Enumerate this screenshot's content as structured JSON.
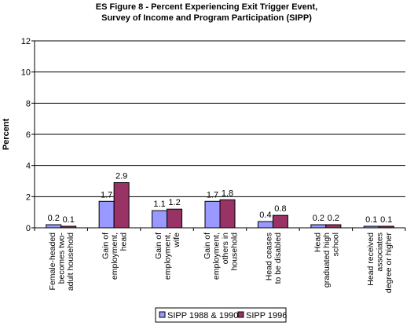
{
  "chart_data": {
    "type": "bar",
    "title_lines": [
      "ES Figure 8 - Percent Experiencing Exit Trigger Event,",
      "Survey of Income and Program Participation (SIPP)"
    ],
    "ylabel": "Percent",
    "xlabel": "",
    "ylim": [
      0,
      12
    ],
    "yticks": [
      "0",
      "2",
      "4",
      "6",
      "8",
      "10",
      "12"
    ],
    "grid": true,
    "legend_position": "bottom",
    "categories": [
      [
        "Female-headed",
        "becomes two-",
        "adult household"
      ],
      [
        "Gain of",
        "employment,",
        "head"
      ],
      [
        "Gain of",
        "employment,",
        "wife"
      ],
      [
        "Gain of",
        "employment,",
        "others in",
        "household"
      ],
      [
        "Head ceases",
        "to be disabled"
      ],
      [
        "Head",
        "graduated high",
        "school"
      ],
      [
        "Head received",
        "associates",
        "degree or higher"
      ]
    ],
    "series": [
      {
        "name": "SIPP 1988 & 1990",
        "color": "#9999ff",
        "values": [
          0.2,
          1.7,
          1.1,
          1.7,
          0.4,
          0.2,
          0.1
        ],
        "labels": [
          "0.2",
          "1.7",
          "1.1",
          "1.7",
          "0.4",
          "0.2",
          "0.1"
        ]
      },
      {
        "name": "SIPP 1996",
        "color": "#993366",
        "values": [
          0.1,
          2.9,
          1.2,
          1.8,
          0.8,
          0.2,
          0.1
        ],
        "labels": [
          "0.1",
          "2.9",
          "1.2",
          "1.8",
          "0.8",
          "0.2",
          "0.1"
        ]
      }
    ]
  }
}
